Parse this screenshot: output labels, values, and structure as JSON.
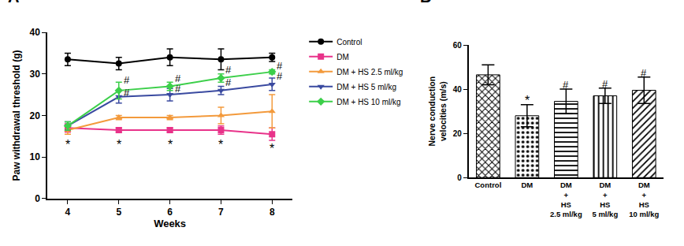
{
  "chart_data": [
    {
      "type": "line",
      "title": "A",
      "x_label": "Weeks",
      "y_label": "Paw withdrawal threshold (g)",
      "x": [
        4,
        5,
        6,
        7,
        8
      ],
      "xlim": [
        3.6,
        8.4
      ],
      "xticks": [
        4,
        5,
        6,
        7,
        8
      ],
      "ylim": [
        0,
        40
      ],
      "yticks": [
        0,
        10,
        20,
        30,
        40
      ],
      "grid": false,
      "legend": "right",
      "series": [
        {
          "name": "Control",
          "color": "#000000",
          "marker": "circle",
          "values": [
            33.5,
            32.5,
            34,
            33.5,
            34
          ],
          "errors": [
            1.5,
            1.5,
            2,
            2.5,
            1
          ]
        },
        {
          "name": "DM",
          "color": "#e8338a",
          "marker": "square",
          "values": [
            17,
            16.5,
            16.5,
            16.5,
            15.5
          ],
          "errors": [
            1,
            0.5,
            0.5,
            1,
            1.5
          ]
        },
        {
          "name": "DM + HS 2.5 ml/kg",
          "color": "#f39a3c",
          "marker": "triangle-up",
          "values": [
            16.5,
            19.5,
            19.5,
            20,
            21
          ],
          "errors": [
            1,
            0.5,
            0.5,
            2,
            4
          ]
        },
        {
          "name": "DM + HS 5 ml/kg",
          "color": "#3a4aa0",
          "marker": "triangle-down",
          "values": [
            17.5,
            24.5,
            25,
            26,
            27.5
          ],
          "errors": [
            1,
            1.5,
            1.5,
            1,
            1.5
          ]
        },
        {
          "name": "DM + HS 10 ml/kg",
          "color": "#3ccf4a",
          "marker": "diamond",
          "values": [
            17.5,
            26,
            27,
            29,
            30.5
          ],
          "errors": [
            1,
            2,
            1,
            1,
            0.5
          ]
        }
      ],
      "annotations": [
        {
          "text": "*",
          "x": 4,
          "y": 13
        },
        {
          "text": "*",
          "x": 5,
          "y": 13
        },
        {
          "text": "*",
          "x": 6,
          "y": 13
        },
        {
          "text": "*",
          "x": 7,
          "y": 13
        },
        {
          "text": "*",
          "x": 8,
          "y": 12
        },
        {
          "text": "#",
          "x": 5,
          "y": 28.5
        },
        {
          "text": "#",
          "x": 6,
          "y": 29
        },
        {
          "text": "#",
          "x": 7,
          "y": 31
        },
        {
          "text": "#",
          "x": 8,
          "y": 32
        },
        {
          "text": "#",
          "x": 5,
          "y": 25.5
        },
        {
          "text": "#",
          "x": 6,
          "y": 26.5
        },
        {
          "text": "#",
          "x": 7,
          "y": 28
        },
        {
          "text": "#",
          "x": 8,
          "y": 29.5
        }
      ]
    },
    {
      "type": "bar",
      "title": "B",
      "y_label": "Nerve conduction\nvelocities (m/s)",
      "categories": [
        "Control",
        "DM",
        "DM\n+\nHS\n2.5 ml/kg",
        "DM\n+\nHS\n5 ml/kg",
        "DM\n+\nHS\n10 ml/kg"
      ],
      "values": [
        46.5,
        28,
        34.5,
        37,
        39.5
      ],
      "errors": [
        4.5,
        5,
        5.5,
        3.5,
        6
      ],
      "color": "#000000",
      "ylim": [
        0,
        60
      ],
      "yticks": [
        0,
        20,
        40,
        60
      ],
      "grid": false,
      "annotations": [
        {
          "text": "*",
          "category": "DM",
          "y": 35
        },
        {
          "text": "#",
          "category": "DM\n+\nHS\n2.5 ml/kg",
          "y": 42
        },
        {
          "text": "#",
          "category": "DM\n+\nHS\n5 ml/kg",
          "y": 42.5
        },
        {
          "text": "#",
          "category": "DM\n+\nHS\n10 ml/kg",
          "y": 47.5
        }
      ]
    }
  ]
}
